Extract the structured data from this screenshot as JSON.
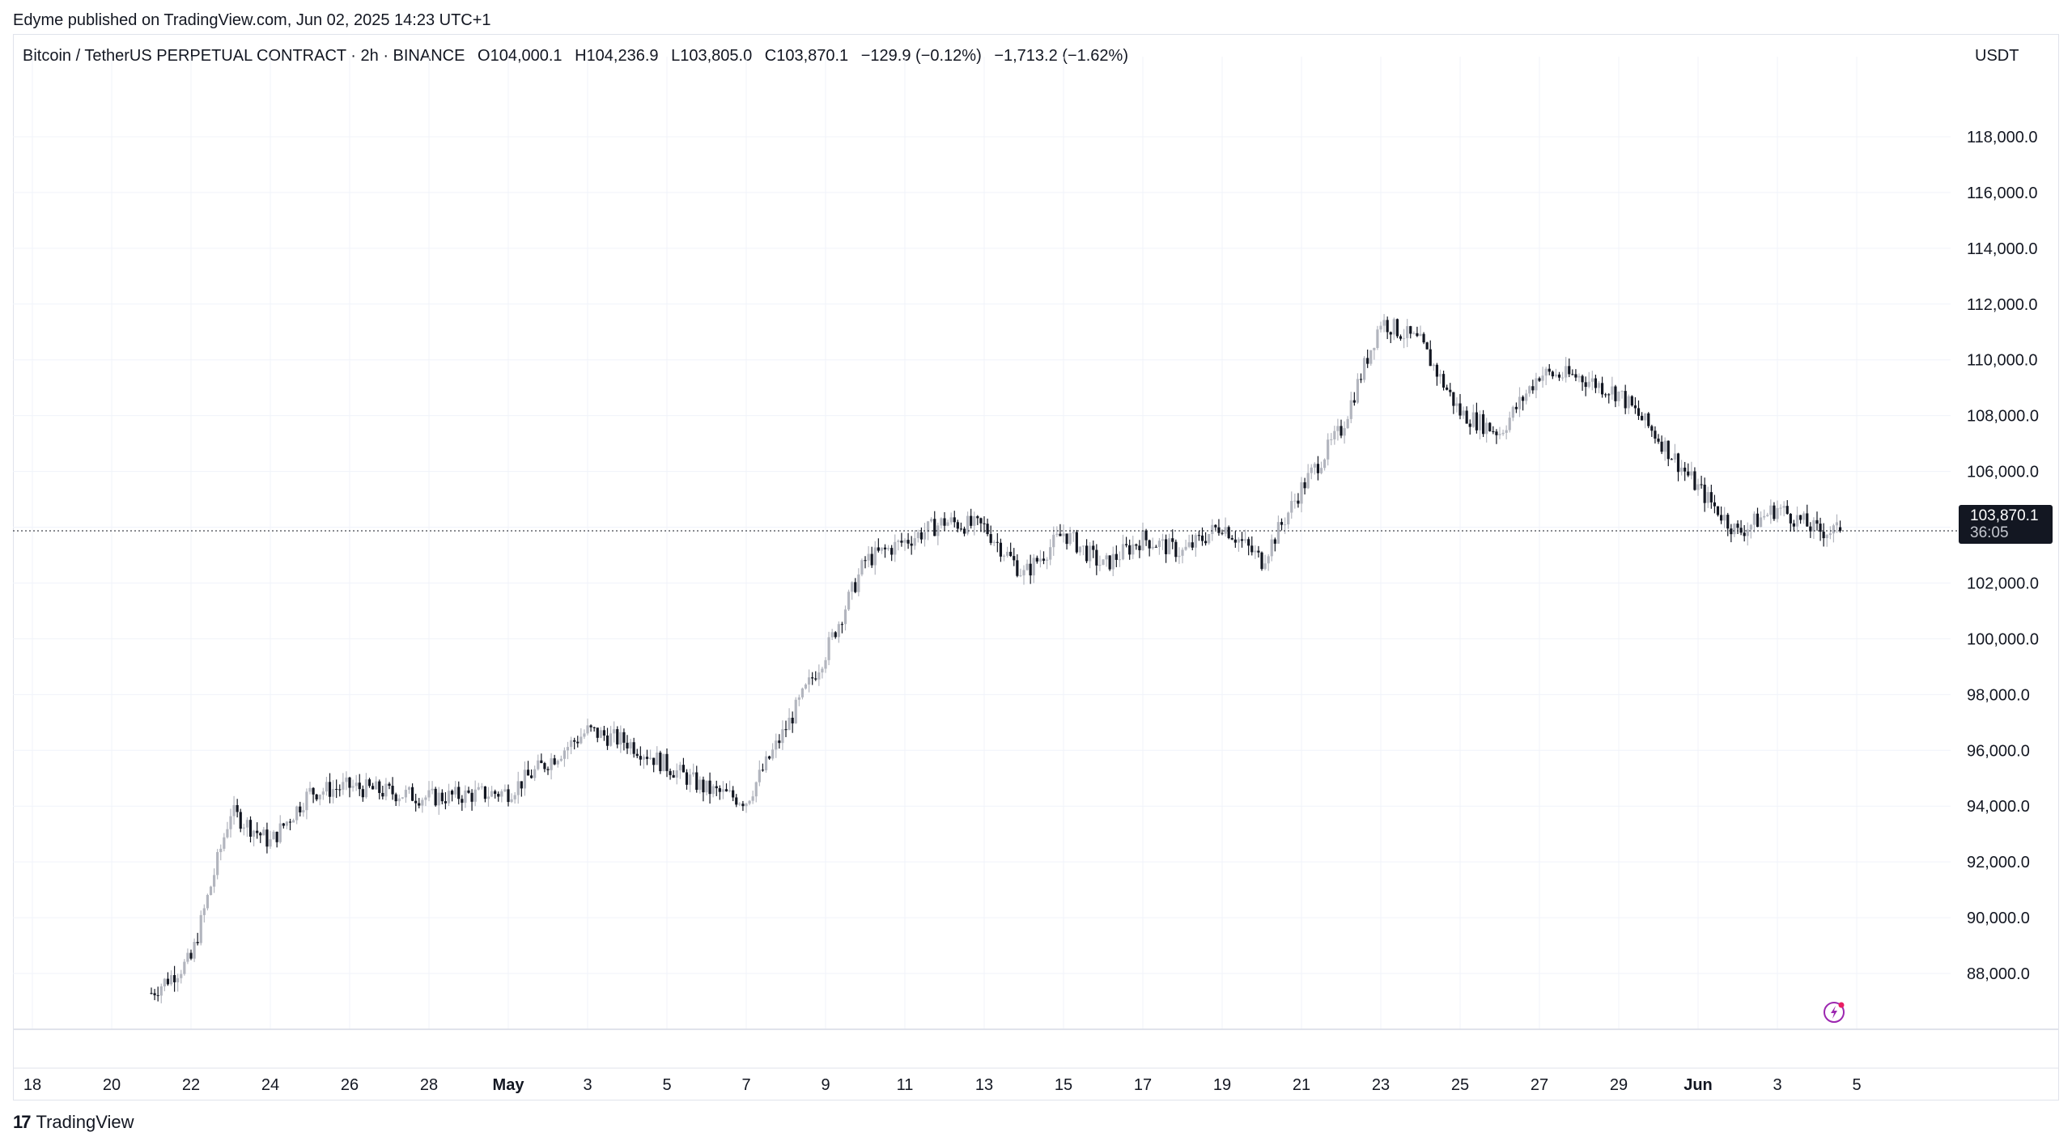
{
  "publisher": "Edyme published on TradingView.com, Jun 02, 2025 14:23 UTC+1",
  "legend": {
    "symbol": "Bitcoin / TetherUS PERPETUAL CONTRACT · 2h · BINANCE",
    "open": "O104,000.1",
    "high": "H104,236.9",
    "low": "L103,805.0",
    "close": "C103,870.1",
    "change": "−129.9 (−0.12%)",
    "range_change": "−1,713.2 (−1.62%)"
  },
  "currency": "USDT",
  "last_price": {
    "value": "103,870.1",
    "timer": "36:05"
  },
  "footer": {
    "brand": "TradingView"
  },
  "chart_data": {
    "type": "candlestick",
    "title": "Bitcoin / TetherUS PERPETUAL CONTRACT · 2h · BINANCE",
    "interval": "2h",
    "ylim": [
      86000,
      120000
    ],
    "y_ticks": [
      "88,000.0",
      "90,000.0",
      "92,000.0",
      "94,000.0",
      "96,000.0",
      "98,000.0",
      "100,000.0",
      "102,000.0",
      "104,000.0",
      "106,000.0",
      "108,000.0",
      "110,000.0",
      "112,000.0",
      "114,000.0",
      "116,000.0",
      "118,000.0"
    ],
    "x_ticks": [
      "18",
      "20",
      "22",
      "24",
      "26",
      "28",
      "May",
      "3",
      "5",
      "7",
      "9",
      "11",
      "13",
      "15",
      "17",
      "19",
      "21",
      "23",
      "25",
      "27",
      "29",
      "Jun",
      "3",
      "5"
    ],
    "last_price": 103870.1,
    "grid": true,
    "approx_close_path": [
      {
        "date": "2025-04-21",
        "close": 87300
      },
      {
        "date": "2025-04-22",
        "close": 88500
      },
      {
        "date": "2025-04-23",
        "close": 93800
      },
      {
        "date": "2025-04-24",
        "close": 92700
      },
      {
        "date": "2025-04-25",
        "close": 94500
      },
      {
        "date": "2025-04-26",
        "close": 94700
      },
      {
        "date": "2025-04-28",
        "close": 94300
      },
      {
        "date": "2025-04-30",
        "close": 94500
      },
      {
        "date": "2025-05-02",
        "close": 96700
      },
      {
        "date": "2025-05-03",
        "close": 96300
      },
      {
        "date": "2025-05-05",
        "close": 94600
      },
      {
        "date": "2025-05-06",
        "close": 94200
      },
      {
        "date": "2025-05-07",
        "close": 96800
      },
      {
        "date": "2025-05-08",
        "close": 99500
      },
      {
        "date": "2025-05-09",
        "close": 102800
      },
      {
        "date": "2025-05-11",
        "close": 104200
      },
      {
        "date": "2025-05-12",
        "close": 104000
      },
      {
        "date": "2025-05-13",
        "close": 102300
      },
      {
        "date": "2025-05-14",
        "close": 103800
      },
      {
        "date": "2025-05-15",
        "close": 102600
      },
      {
        "date": "2025-05-16",
        "close": 103600
      },
      {
        "date": "2025-05-17",
        "close": 103100
      },
      {
        "date": "2025-05-18",
        "close": 104100
      },
      {
        "date": "2025-05-19",
        "close": 102800
      },
      {
        "date": "2025-05-20",
        "close": 105400
      },
      {
        "date": "2025-05-21",
        "close": 107500
      },
      {
        "date": "2025-05-22",
        "close": 111400
      },
      {
        "date": "2025-05-23",
        "close": 110600
      },
      {
        "date": "2025-05-24",
        "close": 108100
      },
      {
        "date": "2025-05-25",
        "close": 107400
      },
      {
        "date": "2025-05-26",
        "close": 109500
      },
      {
        "date": "2025-05-27",
        "close": 109400
      },
      {
        "date": "2025-05-28",
        "close": 108800
      },
      {
        "date": "2025-05-29",
        "close": 107200
      },
      {
        "date": "2025-05-30",
        "close": 105400
      },
      {
        "date": "2025-05-31",
        "close": 103800
      },
      {
        "date": "2025-06-01",
        "close": 104700
      },
      {
        "date": "2025-06-02",
        "close": 103870
      }
    ],
    "colors": {
      "up": "#b2b5be",
      "down": "#131722",
      "grid": "#f0f3fa",
      "axis": "#e0e3eb",
      "text": "#131722",
      "bolt": "#9c27b0"
    }
  }
}
